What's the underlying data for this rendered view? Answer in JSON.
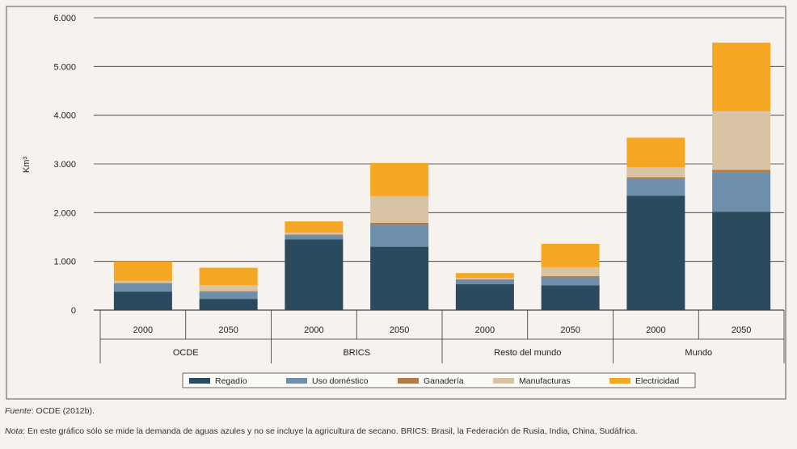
{
  "chart_data": {
    "type": "bar",
    "stacked": true,
    "ylabel": "Km³",
    "ylim": [
      0,
      6000
    ],
    "yticks": [
      "0",
      "1.000",
      "2.000",
      "3.000",
      "4.000",
      "5.000",
      "6.000"
    ],
    "ytick_values": [
      0,
      1000,
      2000,
      3000,
      4000,
      5000,
      6000
    ],
    "grid": true,
    "groups": [
      "OCDE",
      "BRICS",
      "Resto del mundo",
      "Mundo"
    ],
    "categories": [
      "2000",
      "2050",
      "2000",
      "2050",
      "2000",
      "2050",
      "2000",
      "2050"
    ],
    "series": [
      {
        "name": "Regadío",
        "color": "#2c4a5e",
        "values": [
          380,
          230,
          1450,
          1300,
          530,
          510,
          2350,
          2020
        ]
      },
      {
        "name": "Uso doméstico",
        "color": "#6d8fac",
        "values": [
          170,
          140,
          80,
          450,
          90,
          170,
          350,
          800
        ]
      },
      {
        "name": "Ganadería",
        "color": "#b07a4a",
        "values": [
          10,
          20,
          20,
          40,
          10,
          20,
          30,
          60
        ]
      },
      {
        "name": "Manufacturas",
        "color": "#d8c4a4",
        "values": [
          40,
          120,
          40,
          550,
          30,
          180,
          200,
          1200
        ]
      },
      {
        "name": "Electricidad",
        "color": "#f5a623",
        "values": [
          400,
          360,
          230,
          680,
          100,
          480,
          610,
          1410
        ]
      }
    ],
    "legend_position": "bottom"
  },
  "footnotes": {
    "fuente_label": "Fuente",
    "fuente_text": ": OCDE (2012b).",
    "nota_label": "Nota",
    "nota_text": ": En este gráfico sólo se mide la demanda de aguas azules y no se incluye la agricultura de secano. BRICS: Brasil, la Federación de Rusia, India, China, Sudáfrica."
  }
}
